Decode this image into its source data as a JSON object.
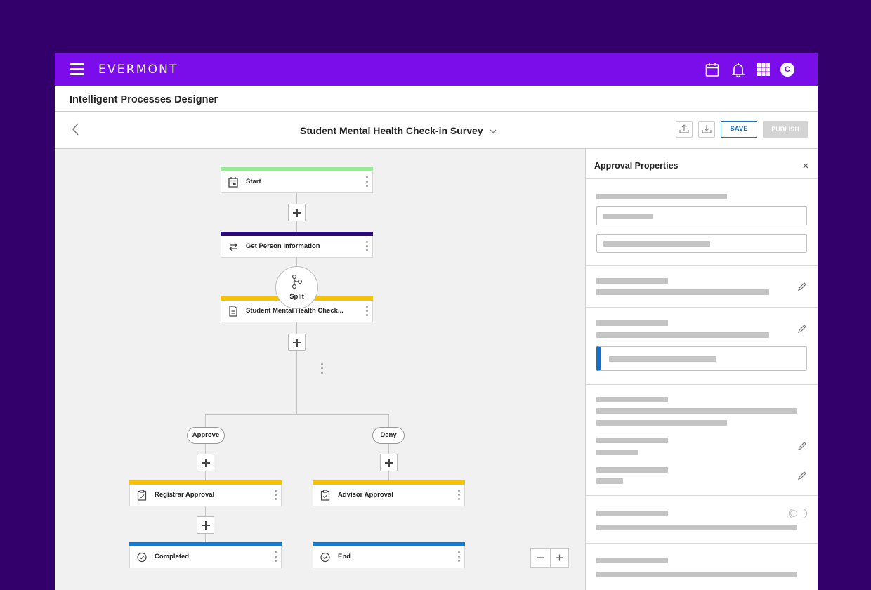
{
  "topbar": {
    "brand": "EVERMONT",
    "avatar_initial": "C",
    "icons": [
      "menu-icon",
      "calendar-icon",
      "bell-icon",
      "apps-grid-icon"
    ],
    "color": "#7a0dea"
  },
  "designer": {
    "title": "Intelligent Processes Designer"
  },
  "toolbar": {
    "document_title": "Student Mental Health Check-in Survey",
    "save_label": "SAVE",
    "publish_label": "PUBLISH",
    "icons": [
      "back-chevron-icon",
      "chevron-down-icon",
      "import-icon",
      "export-icon"
    ]
  },
  "flow": {
    "nodes": [
      {
        "label": "Start",
        "color": "#98e89a",
        "icon": "calendar-icon"
      },
      {
        "label": "Get Person Information",
        "color": "#2b0a72",
        "icon": "swap-arrows-icon"
      },
      {
        "label": "Student Mental Health Check...",
        "color": "#f7c300",
        "icon": "document-icon"
      },
      {
        "label": "Registrar Approval",
        "color": "#f7c300",
        "icon": "clipboard-check-icon"
      },
      {
        "label": "Advisor Approval",
        "color": "#f7c300",
        "icon": "clipboard-check-icon"
      },
      {
        "label": "Completed",
        "color": "#1a78c8",
        "icon": "check-circle-icon"
      },
      {
        "label": "End",
        "color": "#1a78c8",
        "icon": "check-circle-icon"
      }
    ],
    "split_label": "Split",
    "branches": [
      "Approve",
      "Deny"
    ]
  },
  "panel": {
    "title": "Approval Properties"
  }
}
